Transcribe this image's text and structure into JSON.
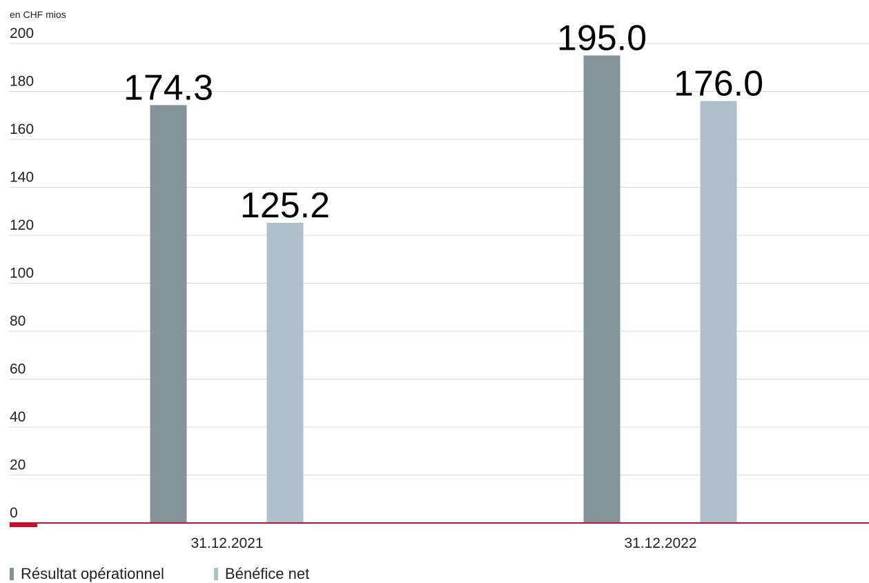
{
  "chart_data": {
    "type": "bar",
    "unit_label": "en CHF mios",
    "categories": [
      "31.12.2021",
      "31.12.2022"
    ],
    "series": [
      {
        "name": "Résultat opérationnel",
        "color": "#85939b",
        "values": [
          174.3,
          195.0
        ],
        "labels": [
          "174.3",
          "195.0"
        ]
      },
      {
        "name": "Bénéfice net",
        "color": "#adc0cb",
        "values": [
          125.2,
          176.0
        ],
        "labels": [
          "125.2",
          "176.0"
        ]
      }
    ],
    "ylim": [
      0,
      200
    ],
    "yticks": [
      "0",
      "20",
      "40",
      "60",
      "80",
      "100",
      "120",
      "140",
      "160",
      "180",
      "200"
    ],
    "grid": true,
    "axis_color": "#c8102e",
    "legend_position": "bottom-left"
  }
}
